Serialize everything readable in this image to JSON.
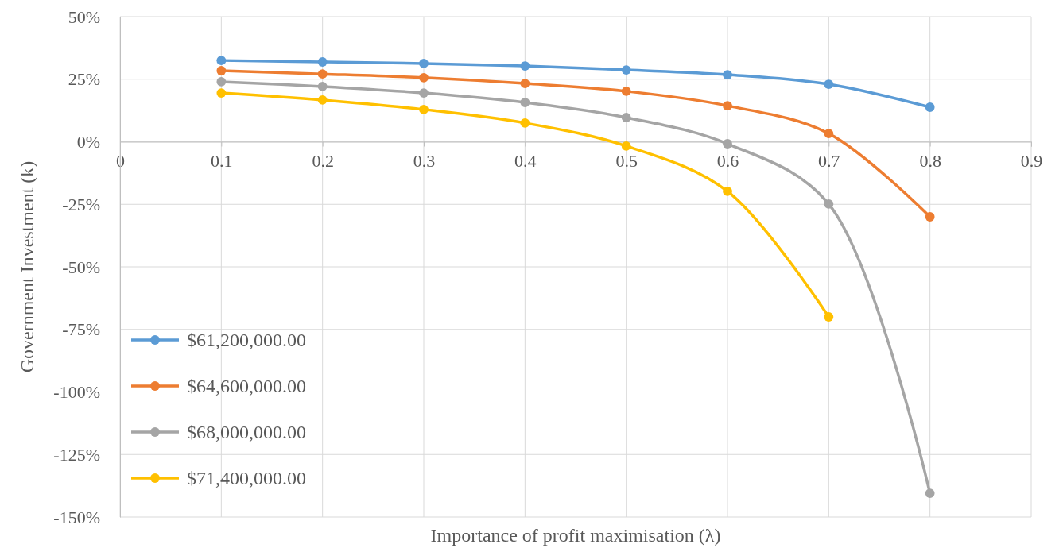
{
  "chart_data": {
    "type": "line",
    "xlabel": "Importance of profit maximisation (λ)",
    "ylabel": "Government Investment (k)",
    "x": [
      0.1,
      0.2,
      0.3,
      0.4,
      0.5,
      0.6,
      0.7,
      0.8
    ],
    "xlim": [
      0,
      0.9
    ],
    "xticks": [
      0,
      0.1,
      0.2,
      0.3,
      0.4,
      0.5,
      0.6,
      0.7,
      0.8,
      0.9
    ],
    "ylim": [
      -150,
      50
    ],
    "yticks": [
      {
        "value": -150,
        "label": "-150%"
      },
      {
        "value": -125,
        "label": "-125%"
      },
      {
        "value": -100,
        "label": "-100%"
      },
      {
        "value": -75,
        "label": "-75%"
      },
      {
        "value": -50,
        "label": "-50%"
      },
      {
        "value": -25,
        "label": "-25%"
      },
      {
        "value": 0,
        "label": "0%"
      },
      {
        "value": 25,
        "label": "25%"
      },
      {
        "value": 50,
        "label": "50%"
      }
    ],
    "grid": true,
    "legend": "bottom left",
    "marker": "circle",
    "line_style": "solid",
    "series": [
      {
        "name": "$61,200,000.00",
        "color": "#5b9bd5",
        "values": [
          32.5,
          31.9,
          31.3,
          30.3,
          28.7,
          26.8,
          23.0,
          13.8
        ]
      },
      {
        "name": "$64,600,000.00",
        "color": "#ed7d31",
        "values": [
          28.4,
          27.1,
          25.6,
          23.3,
          20.2,
          14.4,
          3.3,
          -30
        ]
      },
      {
        "name": "$68,000,000.00",
        "color": "#a5a5a5",
        "values": [
          24,
          22.1,
          19.5,
          15.7,
          9.7,
          -0.8,
          -24.9,
          -140.5
        ]
      },
      {
        "name": "$71,400,000.00",
        "color": "#ffc000",
        "values": [
          19.5,
          16.7,
          12.9,
          7.5,
          -1.7,
          -19.8,
          -70,
          null
        ]
      }
    ]
  }
}
